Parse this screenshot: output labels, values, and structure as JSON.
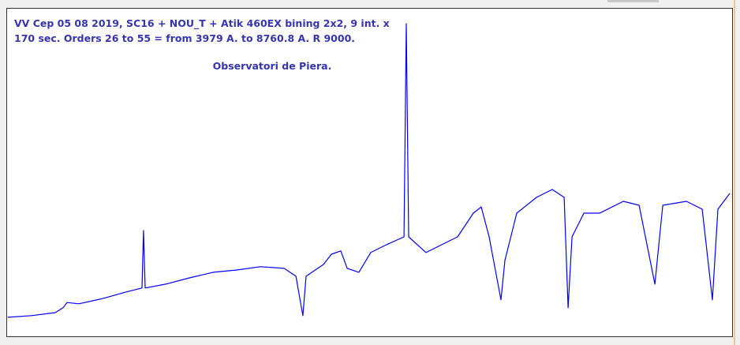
{
  "chart_data": {
    "type": "line",
    "title_lines": [
      "VV Cep 05 08 2019, SC16 + NOU_T + Atik 460EX bining 2x2, 9 int. x",
      "170 sec. Orders 26 to 55 = from 3979 A. to 8760.8 A. R 9000."
    ],
    "annotation": "Observatori de Piera.",
    "xlim": [
      3979,
      8760.8
    ],
    "ylim": [
      0,
      1
    ],
    "series": [
      {
        "color": "#0000ff",
        "x": [
          3989,
          4145,
          4301,
          4353,
          4379,
          4457,
          4613,
          4769,
          4873,
          4883,
          4894,
          5029,
          5185,
          5341,
          5497,
          5653,
          5809,
          5887,
          5933,
          5954,
          6069,
          6121,
          6183,
          6225,
          6302,
          6380,
          6484,
          6599,
          6614,
          6630,
          6744,
          6848,
          6952,
          7056,
          7108,
          7160,
          7238,
          7264,
          7342,
          7472,
          7576,
          7654,
          7680,
          7706,
          7784,
          7888,
          8044,
          8148,
          8252,
          8304,
          8460,
          8564,
          8631,
          8667,
          8745
        ],
        "values": [
          0.058,
          0.063,
          0.072,
          0.087,
          0.103,
          0.099,
          0.115,
          0.135,
          0.147,
          0.322,
          0.147,
          0.159,
          0.178,
          0.195,
          0.202,
          0.212,
          0.207,
          0.183,
          0.063,
          0.183,
          0.219,
          0.25,
          0.26,
          0.207,
          0.195,
          0.255,
          0.279,
          0.303,
          0.952,
          0.303,
          0.255,
          0.279,
          0.303,
          0.375,
          0.394,
          0.303,
          0.111,
          0.231,
          0.375,
          0.423,
          0.447,
          0.423,
          0.087,
          0.303,
          0.375,
          0.375,
          0.411,
          0.399,
          0.159,
          0.399,
          0.411,
          0.387,
          0.111,
          0.387,
          0.435
        ]
      }
    ]
  }
}
